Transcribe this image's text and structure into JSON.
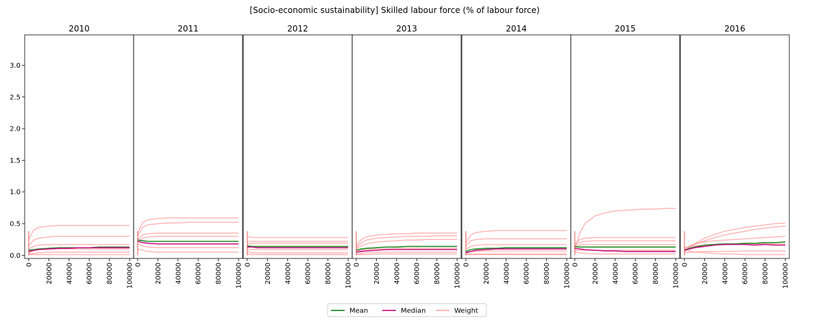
{
  "chart_data": {
    "type": "line",
    "title": "[Socio-economic sustainability] Skilled labour force (% of labour force)",
    "panels": [
      "2010",
      "2011",
      "2012",
      "2013",
      "2014",
      "2015",
      "2016"
    ],
    "x_ticks": [
      "0",
      "20000",
      "40000",
      "60000",
      "80000",
      "100000"
    ],
    "xlim": [
      -4000,
      104000
    ],
    "y_ticks": [
      "0.0",
      "0.5",
      "1.0",
      "1.5",
      "2.0",
      "2.5",
      "3.0"
    ],
    "ylim": [
      -0.05,
      3.48
    ],
    "x": [
      0,
      5000,
      10000,
      20000,
      30000,
      40000,
      50000,
      60000,
      70000,
      80000,
      90000,
      100000
    ],
    "colors": {
      "mean": "#228B22",
      "median": "#C71585",
      "weight": "#FF9999"
    },
    "series": [
      {
        "name": "Mean",
        "panels": [
          [
            0.08,
            0.09,
            0.1,
            0.11,
            0.12,
            0.12,
            0.12,
            0.12,
            0.13,
            0.13,
            0.13,
            0.13
          ],
          [
            0.24,
            0.23,
            0.22,
            0.22,
            0.22,
            0.22,
            0.22,
            0.22,
            0.22,
            0.22,
            0.22,
            0.22
          ],
          [
            0.15,
            0.14,
            0.14,
            0.14,
            0.14,
            0.14,
            0.14,
            0.14,
            0.14,
            0.14,
            0.14,
            0.14
          ],
          [
            0.08,
            0.1,
            0.11,
            0.12,
            0.13,
            0.13,
            0.14,
            0.14,
            0.14,
            0.14,
            0.14,
            0.14
          ],
          [
            0.06,
            0.09,
            0.1,
            0.11,
            0.11,
            0.12,
            0.12,
            0.12,
            0.12,
            0.12,
            0.12,
            0.12
          ],
          [
            0.14,
            0.13,
            0.13,
            0.13,
            0.13,
            0.13,
            0.13,
            0.13,
            0.13,
            0.13,
            0.13,
            0.13
          ],
          [
            0.08,
            0.11,
            0.13,
            0.16,
            0.17,
            0.18,
            0.18,
            0.19,
            0.19,
            0.2,
            0.2,
            0.21
          ]
        ]
      },
      {
        "name": "Median",
        "panels": [
          [
            0.06,
            0.08,
            0.09,
            0.1,
            0.11,
            0.11,
            0.12,
            0.12,
            0.12,
            0.12,
            0.12,
            0.12
          ],
          [
            0.22,
            0.2,
            0.19,
            0.18,
            0.18,
            0.18,
            0.18,
            0.18,
            0.18,
            0.18,
            0.18,
            0.18
          ],
          [
            0.13,
            0.13,
            0.12,
            0.12,
            0.12,
            0.12,
            0.12,
            0.12,
            0.12,
            0.12,
            0.12,
            0.12
          ],
          [
            0.05,
            0.06,
            0.07,
            0.08,
            0.09,
            0.09,
            0.09,
            0.09,
            0.09,
            0.09,
            0.09,
            0.09
          ],
          [
            0.04,
            0.06,
            0.08,
            0.09,
            0.1,
            0.1,
            0.1,
            0.1,
            0.1,
            0.1,
            0.1,
            0.1
          ],
          [
            0.11,
            0.1,
            0.09,
            0.08,
            0.07,
            0.07,
            0.06,
            0.06,
            0.06,
            0.06,
            0.06,
            0.06
          ],
          [
            0.08,
            0.1,
            0.12,
            0.14,
            0.16,
            0.17,
            0.17,
            0.17,
            0.16,
            0.17,
            0.16,
            0.16
          ]
        ]
      },
      {
        "name": "Weight",
        "panels": [
          [
            [
              0.25,
              0.4,
              0.44,
              0.46,
              0.47,
              0.47,
              0.47,
              0.47,
              0.47,
              0.47,
              0.47,
              0.47
            ],
            [
              0.15,
              0.24,
              0.27,
              0.29,
              0.3,
              0.3,
              0.3,
              0.3,
              0.3,
              0.3,
              0.3,
              0.3
            ],
            [
              0.1,
              0.14,
              0.16,
              0.17,
              0.17,
              0.17,
              0.17,
              0.17,
              0.17,
              0.17,
              0.17,
              0.17
            ],
            [
              0.04,
              0.07,
              0.09,
              0.1,
              0.1,
              0.1,
              0.1,
              0.1,
              0.1,
              0.1,
              0.1,
              0.1
            ],
            [
              0.02,
              0.03,
              0.04,
              0.05,
              0.05,
              0.05,
              0.05,
              0.05,
              0.05,
              0.05,
              0.05,
              0.05
            ],
            [
              0.01,
              0.01,
              0.01,
              0.01,
              0.01,
              0.01,
              0.01,
              0.01,
              0.01,
              0.01,
              0.01,
              0.01
            ]
          ],
          [
            [
              0.35,
              0.52,
              0.56,
              0.58,
              0.59,
              0.59,
              0.59,
              0.59,
              0.59,
              0.59,
              0.59,
              0.59
            ],
            [
              0.3,
              0.44,
              0.48,
              0.5,
              0.51,
              0.51,
              0.52,
              0.52,
              0.52,
              0.52,
              0.52,
              0.52
            ],
            [
              0.25,
              0.32,
              0.34,
              0.35,
              0.35,
              0.35,
              0.35,
              0.35,
              0.35,
              0.35,
              0.35,
              0.35
            ],
            [
              0.22,
              0.27,
              0.29,
              0.3,
              0.3,
              0.3,
              0.3,
              0.3,
              0.3,
              0.3,
              0.3,
              0.3
            ],
            [
              0.18,
              0.15,
              0.13,
              0.12,
              0.12,
              0.12,
              0.12,
              0.12,
              0.12,
              0.12,
              0.12,
              0.12
            ],
            [
              0.1,
              0.08,
              0.06,
              0.05,
              0.05,
              0.05,
              0.05,
              0.05,
              0.05,
              0.05,
              0.05,
              0.05
            ]
          ],
          [
            [
              0.3,
              0.28,
              0.28,
              0.28,
              0.28,
              0.28,
              0.28,
              0.28,
              0.28,
              0.28,
              0.28,
              0.28
            ],
            [
              0.22,
              0.22,
              0.22,
              0.22,
              0.22,
              0.22,
              0.22,
              0.22,
              0.22,
              0.22,
              0.22,
              0.22
            ],
            [
              0.18,
              0.19,
              0.19,
              0.19,
              0.19,
              0.19,
              0.19,
              0.19,
              0.19,
              0.19,
              0.19,
              0.19
            ],
            [
              0.1,
              0.09,
              0.09,
              0.09,
              0.09,
              0.09,
              0.09,
              0.09,
              0.09,
              0.09,
              0.09,
              0.09
            ],
            [
              0.06,
              0.04,
              0.04,
              0.04,
              0.04,
              0.04,
              0.04,
              0.04,
              0.04,
              0.04,
              0.04,
              0.04
            ],
            [
              0.02,
              0.01,
              0.01,
              0.01,
              0.01,
              0.01,
              0.01,
              0.01,
              0.01,
              0.01,
              0.01,
              0.01
            ]
          ],
          [
            [
              0.15,
              0.25,
              0.29,
              0.32,
              0.33,
              0.34,
              0.34,
              0.35,
              0.35,
              0.35,
              0.35,
              0.35
            ],
            [
              0.12,
              0.2,
              0.24,
              0.27,
              0.28,
              0.29,
              0.3,
              0.3,
              0.3,
              0.31,
              0.31,
              0.31
            ],
            [
              0.1,
              0.15,
              0.18,
              0.21,
              0.22,
              0.23,
              0.24,
              0.24,
              0.25,
              0.25,
              0.25,
              0.25
            ],
            [
              0.06,
              0.08,
              0.09,
              0.1,
              0.1,
              0.11,
              0.11,
              0.11,
              0.11,
              0.11,
              0.11,
              0.11
            ],
            [
              0.02,
              0.03,
              0.04,
              0.05,
              0.05,
              0.05,
              0.05,
              0.05,
              0.05,
              0.05,
              0.05,
              0.05
            ],
            [
              0.01,
              0.01,
              0.01,
              0.02,
              0.02,
              0.02,
              0.02,
              0.02,
              0.02,
              0.02,
              0.02,
              0.02
            ]
          ],
          [
            [
              0.2,
              0.32,
              0.36,
              0.38,
              0.39,
              0.39,
              0.39,
              0.39,
              0.39,
              0.39,
              0.39,
              0.39
            ],
            [
              0.15,
              0.23,
              0.25,
              0.26,
              0.26,
              0.26,
              0.26,
              0.26,
              0.26,
              0.26,
              0.26,
              0.26
            ],
            [
              0.1,
              0.14,
              0.16,
              0.17,
              0.17,
              0.17,
              0.17,
              0.17,
              0.17,
              0.17,
              0.17,
              0.17
            ],
            [
              0.05,
              0.06,
              0.06,
              0.07,
              0.07,
              0.07,
              0.07,
              0.07,
              0.07,
              0.07,
              0.07,
              0.07
            ],
            [
              0.02,
              0.02,
              0.02,
              0.02,
              0.02,
              0.02,
              0.02,
              0.02,
              0.02,
              0.02,
              0.02,
              0.02
            ],
            [
              0.01,
              0.01,
              0.01,
              0.01,
              0.01,
              0.01,
              0.01,
              0.01,
              0.01,
              0.01,
              0.01,
              0.01
            ]
          ],
          [
            [
              0.1,
              0.35,
              0.5,
              0.62,
              0.67,
              0.7,
              0.71,
              0.72,
              0.73,
              0.73,
              0.74,
              0.74
            ],
            [
              0.18,
              0.25,
              0.27,
              0.28,
              0.28,
              0.28,
              0.28,
              0.28,
              0.28,
              0.28,
              0.28,
              0.28
            ],
            [
              0.15,
              0.2,
              0.22,
              0.23,
              0.23,
              0.23,
              0.23,
              0.23,
              0.23,
              0.23,
              0.23,
              0.23
            ],
            [
              0.12,
              0.16,
              0.17,
              0.17,
              0.17,
              0.17,
              0.17,
              0.17,
              0.17,
              0.17,
              0.17,
              0.17
            ],
            [
              0.08,
              0.08,
              0.08,
              0.08,
              0.08,
              0.08,
              0.08,
              0.08,
              0.08,
              0.08,
              0.08,
              0.08
            ],
            [
              0.05,
              0.04,
              0.03,
              0.02,
              0.02,
              0.02,
              0.02,
              0.02,
              0.02,
              0.02,
              0.02,
              0.02
            ]
          ],
          [
            [
              0.05,
              0.12,
              0.18,
              0.27,
              0.33,
              0.38,
              0.41,
              0.44,
              0.46,
              0.48,
              0.5,
              0.51
            ],
            [
              0.08,
              0.13,
              0.17,
              0.23,
              0.28,
              0.32,
              0.35,
              0.38,
              0.41,
              0.43,
              0.45,
              0.46
            ],
            [
              0.1,
              0.15,
              0.18,
              0.21,
              0.23,
              0.24,
              0.25,
              0.26,
              0.27,
              0.28,
              0.29,
              0.3
            ],
            [
              0.12,
              0.14,
              0.15,
              0.16,
              0.17,
              0.17,
              0.18,
              0.18,
              0.18,
              0.18,
              0.18,
              0.18
            ],
            [
              0.04,
              0.05,
              0.05,
              0.06,
              0.06,
              0.06,
              0.06,
              0.07,
              0.07,
              0.07,
              0.07,
              0.07
            ],
            [
              0.1,
              0.07,
              0.05,
              0.04,
              0.03,
              0.02,
              0.02,
              0.01,
              0.01,
              0.01,
              0.01,
              0.01
            ]
          ]
        ]
      }
    ],
    "legend": [
      "Mean",
      "Median",
      "Weight"
    ],
    "legend_position": "bottom-center"
  }
}
